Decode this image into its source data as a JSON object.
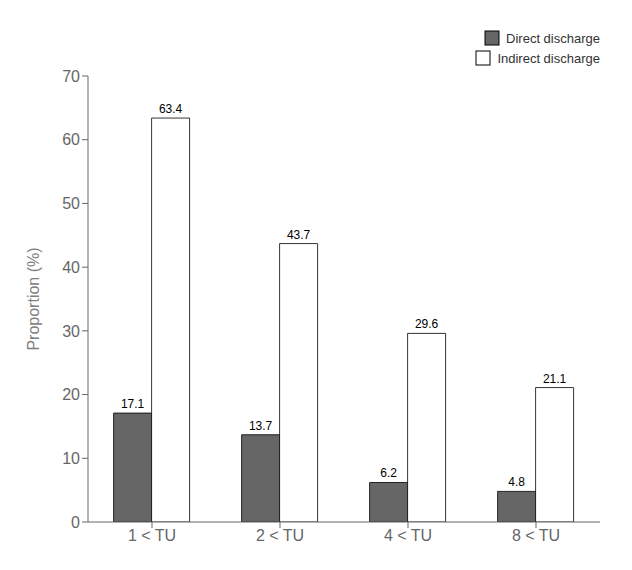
{
  "chart_data": {
    "type": "bar",
    "categories": [
      "1 < TU",
      "2 < TU",
      "4 < TU",
      "8 < TU"
    ],
    "series": [
      {
        "name": "Direct discharge",
        "color": "#666666",
        "values": [
          17.1,
          13.7,
          6.2,
          4.8
        ]
      },
      {
        "name": "Indirect discharge",
        "color": "#ffffff",
        "values": [
          63.4,
          43.7,
          29.6,
          21.1
        ]
      }
    ],
    "ylabel": "Proportion (%)",
    "ylim": [
      0,
      70
    ],
    "yticks": [
      0,
      10,
      20,
      30,
      40,
      50,
      60,
      70
    ],
    "legend": "upper right",
    "grid": false,
    "data_labels": true
  }
}
